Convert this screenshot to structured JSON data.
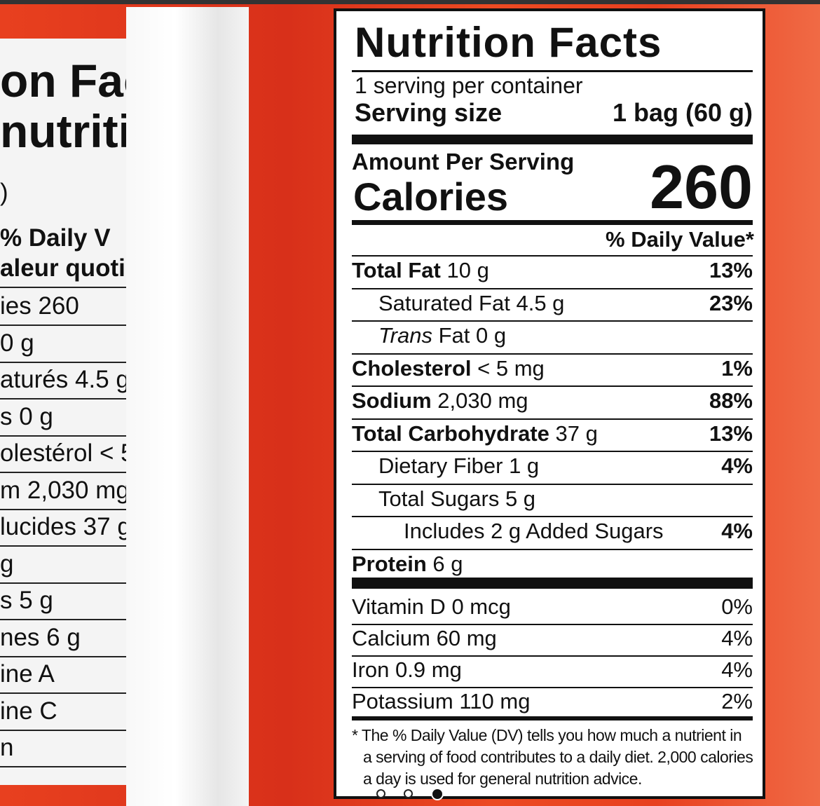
{
  "left_label": {
    "title_lines": [
      "on Facts",
      "nutritiv"
    ],
    "lines": [
      ")",
      "% Daily V",
      "aleur quotidi",
      "ies 260",
      "0 g",
      "aturés 4.5 g",
      "s 0 g",
      "olestérol < 5",
      "m 2,030 mg",
      "lucides 37 g",
      "g",
      "s 5 g",
      "nes 6 g",
      "ine A",
      "ine C",
      "n"
    ]
  },
  "label": {
    "title": "Nutrition Facts",
    "servings": "1 serving per container",
    "serving_size_label": "Serving size",
    "serving_size": "1 bag (60 g)",
    "amount_per_serving": "Amount Per Serving",
    "calories_label": "Calories",
    "calories": "260",
    "dv_header": "% Daily Value*",
    "rows": [
      {
        "name": "Total Fat",
        "amount": "10 g",
        "dv": "13%",
        "bold": true,
        "indent": 0
      },
      {
        "name": "Saturated Fat",
        "amount": "4.5 g",
        "dv": "23%",
        "bold": false,
        "indent": 1
      },
      {
        "name_italic": "Trans",
        "name": "Fat",
        "amount": "0 g",
        "bold": false,
        "indent": 1
      },
      {
        "name": "Cholesterol",
        "amount": "< 5 mg",
        "dv": "1%",
        "bold": true,
        "indent": 0
      },
      {
        "name": "Sodium",
        "amount": "2,030 mg",
        "dv": "88%",
        "bold": true,
        "indent": 0
      },
      {
        "name": "Total Carbohydrate",
        "amount": "37 g",
        "dv": "13%",
        "bold": true,
        "indent": 0
      },
      {
        "name": "Dietary Fiber",
        "amount": "1 g",
        "dv": "4%",
        "bold": false,
        "indent": 1
      },
      {
        "name": "Total Sugars",
        "amount": "5 g",
        "bold": false,
        "indent": 1
      },
      {
        "name": "Includes 2 g Added Sugars",
        "dv": "4%",
        "bold": false,
        "indent": 2
      },
      {
        "name": "Protein",
        "amount": "6 g",
        "bold": true,
        "indent": 0
      }
    ],
    "vitamins": [
      {
        "name": "Vitamin D",
        "amount": "0 mcg",
        "dv": "0%"
      },
      {
        "name": "Calcium",
        "amount": "60 mg",
        "dv": "4%"
      },
      {
        "name": "Iron",
        "amount": "0.9 mg",
        "dv": "4%"
      },
      {
        "name": "Potassium",
        "amount": "110 mg",
        "dv": "2%"
      }
    ],
    "footnote_lines": [
      "* The % Daily Value (DV) tells you how much a nutrient in",
      "a serving of food contributes to a daily diet. 2,000 calories",
      "a day is used for general nutrition advice."
    ]
  }
}
